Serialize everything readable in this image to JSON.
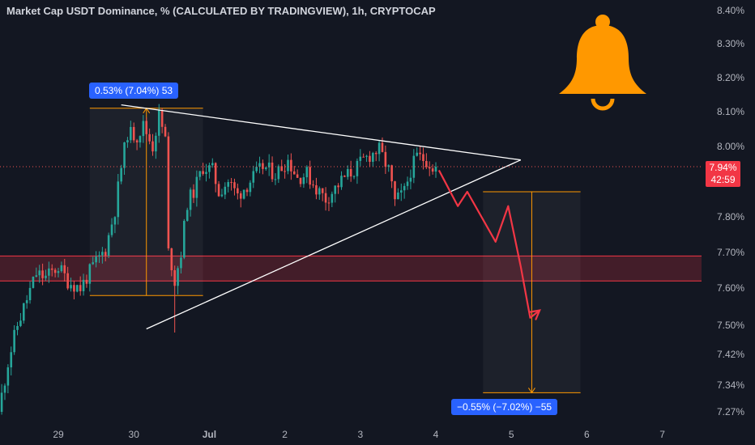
{
  "chart_title": "Market Cap USDT Dominance, % (CALCULATED BY TRADINGVIEW), 1h, CRYPTOCAP",
  "colors": {
    "background": "#131722",
    "up": "#26a69a",
    "down": "#ef5350",
    "zone": "#f23645",
    "measure_up": "#ff9800",
    "measure_down": "#ff9800",
    "label_bg": "#2962ff",
    "bell": "#ff9800",
    "arrow": "#f23645"
  },
  "current_price": {
    "value": 7.94,
    "label": "7.94%",
    "countdown": "42:59"
  },
  "measure_up_label": "0.53% (7.04%) 53",
  "measure_down_label": "−0.55% (−7.02%) −55",
  "bell_icon": "bell-icon",
  "chart_data": {
    "type": "candlestick",
    "title": "Market Cap USDT Dominance, % (CALCULATED BY TRADINGVIEW), 1h, CRYPTOCAP",
    "y_axis_side": "right",
    "y_ticks": [
      {
        "v": 8.4,
        "label": "8.40%"
      },
      {
        "v": 8.3,
        "label": "8.30%"
      },
      {
        "v": 8.2,
        "label": "8.20%"
      },
      {
        "v": 8.1,
        "label": "8.10%"
      },
      {
        "v": 8.0,
        "label": "8.00%"
      },
      {
        "v": 7.8,
        "label": "7.80%"
      },
      {
        "v": 7.7,
        "label": "7.70%"
      },
      {
        "v": 7.6,
        "label": "7.60%"
      },
      {
        "v": 7.5,
        "label": "7.50%"
      },
      {
        "v": 7.42,
        "label": "7.42%"
      },
      {
        "v": 7.34,
        "label": "7.34%"
      },
      {
        "v": 7.27,
        "label": "7.27%"
      }
    ],
    "x_ticks": [
      {
        "t": 0,
        "label": "29"
      },
      {
        "t": 24,
        "label": "30"
      },
      {
        "t": 48,
        "label": "Jul"
      },
      {
        "t": 72,
        "label": "2"
      },
      {
        "t": 96,
        "label": "3"
      },
      {
        "t": 120,
        "label": "4"
      },
      {
        "t": 144,
        "label": "5"
      },
      {
        "t": 168,
        "label": "6"
      },
      {
        "t": 192,
        "label": "7"
      }
    ],
    "demand_zone": [
      7.62,
      7.69
    ],
    "current_price": 7.94,
    "triangle": {
      "upper": [
        [
          20,
          8.12
        ],
        [
          147,
          7.96
        ]
      ],
      "lower": [
        [
          28,
          7.49
        ],
        [
          147,
          7.96
        ]
      ]
    },
    "measure_up": {
      "t0": 10,
      "t1": 46,
      "from": 7.58,
      "to": 8.11
    },
    "measure_down": {
      "t0": 135,
      "t1": 166,
      "from": 7.87,
      "to": 7.32
    },
    "projection_path": [
      [
        121,
        7.93
      ],
      [
        127,
        7.83
      ],
      [
        130,
        7.87
      ],
      [
        139,
        7.73
      ],
      [
        143,
        7.83
      ],
      [
        147,
        7.66
      ],
      [
        150,
        7.52
      ],
      [
        153,
        7.54
      ]
    ],
    "candles": []
  }
}
